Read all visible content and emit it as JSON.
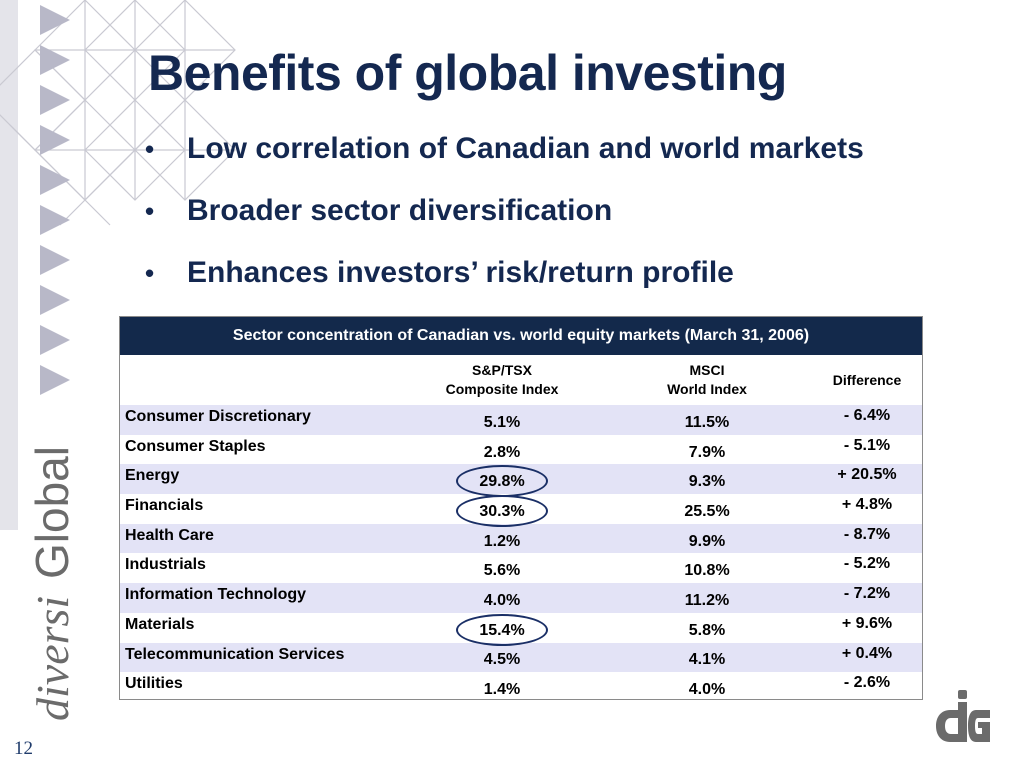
{
  "slide": {
    "title": "Benefits of global investing",
    "page_number": "12"
  },
  "bullets": [
    "Low correlation of Canadian and world markets",
    "Broader sector diversification",
    "Enhances investors’ risk/return profile"
  ],
  "bullet_glyph": "•",
  "logo": {
    "text_italic": "diversi",
    "text_regular": "Global",
    "mark": "dG"
  },
  "table": {
    "title": "Sector concentration of Canadian vs. world equity markets (March 31, 2006)",
    "headers": {
      "col1": "",
      "col2_line1": "S&P/TSX",
      "col2_line2": "Composite Index",
      "col3_line1": "MSCI",
      "col3_line2": "World Index",
      "col4": "Difference"
    },
    "rows": [
      {
        "sector": "Consumer Discretionary",
        "tsx": "5.1%",
        "msci": "11.5%",
        "diff": "- 6.4%"
      },
      {
        "sector": "Consumer Staples",
        "tsx": "2.8%",
        "msci": "7.9%",
        "diff": "- 5.1%"
      },
      {
        "sector": "Energy",
        "tsx": "29.8%",
        "msci": "9.3%",
        "diff": "+ 20.5%"
      },
      {
        "sector": "Financials",
        "tsx": "30.3%",
        "msci": "25.5%",
        "diff": "+ 4.8%"
      },
      {
        "sector": "Health Care",
        "tsx": "1.2%",
        "msci": "9.9%",
        "diff": "- 8.7%"
      },
      {
        "sector": "Industrials",
        "tsx": "5.6%",
        "msci": "10.8%",
        "diff": "- 5.2%"
      },
      {
        "sector": "Information Technology",
        "tsx": "4.0%",
        "msci": "11.2%",
        "diff": "- 7.2%"
      },
      {
        "sector": "Materials",
        "tsx": "15.4%",
        "msci": "5.8%",
        "diff": "+ 9.6%"
      },
      {
        "sector": "Telecommunication Services",
        "tsx": "4.5%",
        "msci": "4.1%",
        "diff": "+ 0.4%"
      },
      {
        "sector": "Utilities",
        "tsx": "1.4%",
        "msci": "4.0%",
        "diff": "- 2.6%"
      }
    ],
    "circled_tsx_sectors": [
      "Energy",
      "Financials",
      "Materials"
    ]
  },
  "colors": {
    "navy": "#142850",
    "table_header_bg": "#13294b",
    "row_alt_bg": "#e3e3f6",
    "logo_gray": "#6b6b6b"
  }
}
